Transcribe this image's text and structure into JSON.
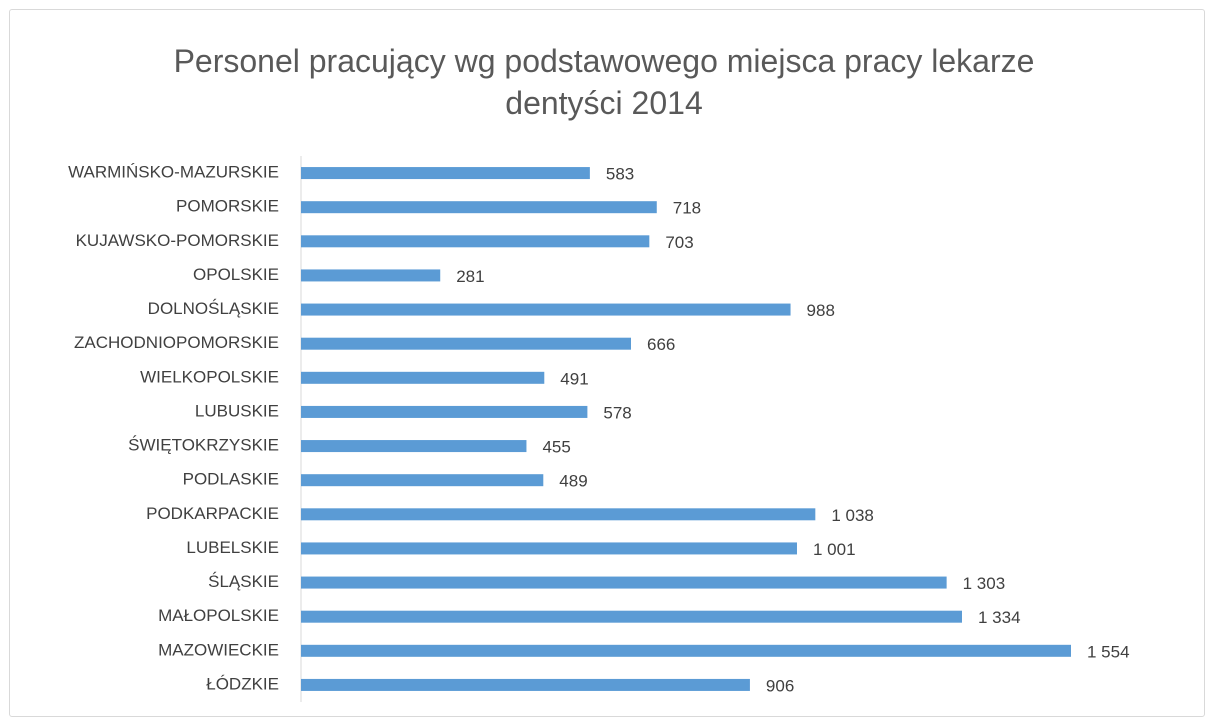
{
  "chart_data": {
    "type": "bar",
    "orientation": "horizontal",
    "title": "Personel pracujący wg podstawowego miejsca pracy lekarze dentyści 2014",
    "categories": [
      "WARMIŃSKO-MAZURSKIE",
      "POMORSKIE",
      "KUJAWSKO-POMORSKIE",
      "OPOLSKIE",
      "DOLNOŚLĄSKIE",
      "ZACHODNIOPOMORSKIE",
      "WIELKOPOLSKIE",
      "LUBUSKIE",
      "ŚWIĘTOKRZYSKIE",
      "PODLASKIE",
      "PODKARPACKIE",
      "LUBELSKIE",
      "ŚLĄSKIE",
      "MAŁOPOLSKIE",
      "MAZOWIECKIE",
      "ŁÓDZKIE"
    ],
    "values": [
      583,
      718,
      703,
      281,
      988,
      666,
      491,
      578,
      455,
      489,
      1038,
      1001,
      1303,
      1334,
      1554,
      906
    ],
    "value_labels": [
      "583",
      "718",
      "703",
      "281",
      "988",
      "666",
      "491",
      "578",
      "455",
      "489",
      "1 038",
      "1 001",
      "1 303",
      "1 334",
      "1 554",
      "906"
    ],
    "color": "#5b9bd5"
  }
}
